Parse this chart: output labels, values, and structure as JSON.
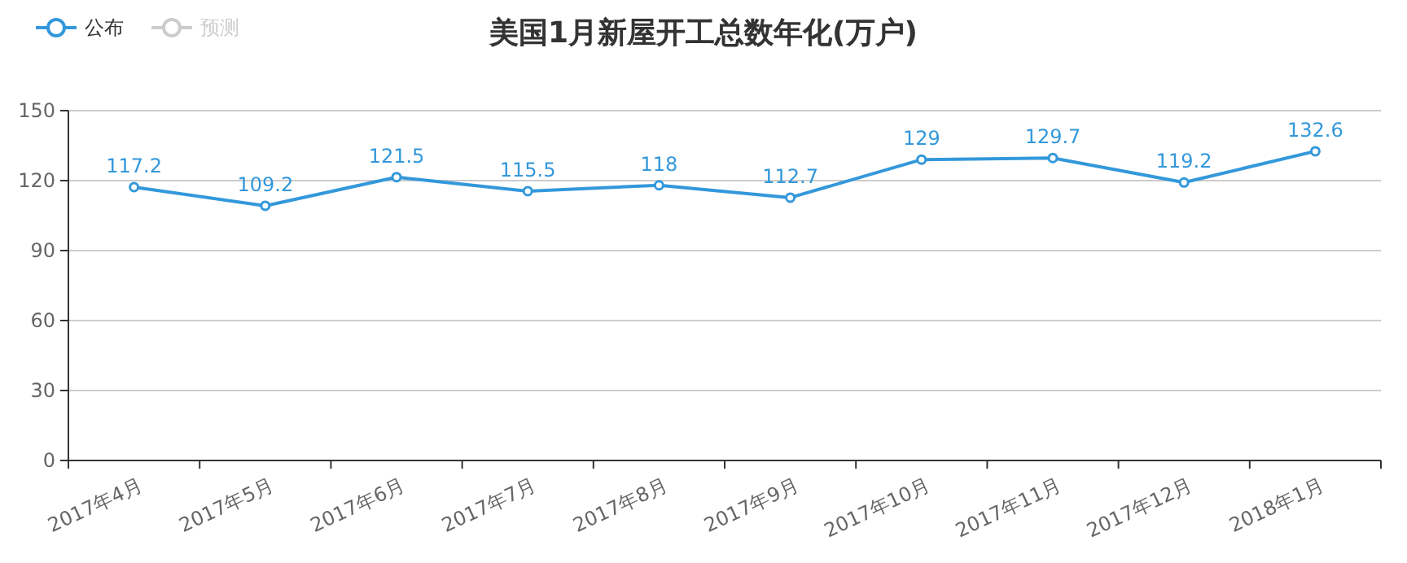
{
  "chart_data": {
    "type": "line",
    "title": "美国1月新屋开工总数年化(万户)",
    "categories": [
      "2017年4月",
      "2017年5月",
      "2017年6月",
      "2017年7月",
      "2017年8月",
      "2017年9月",
      "2017年10月",
      "2017年11月",
      "2017年12月",
      "2018年1月"
    ],
    "series": [
      {
        "name": "公布",
        "color": "#3398db",
        "values": [
          117.2,
          109.2,
          121.5,
          115.5,
          118,
          112.7,
          129,
          129.7,
          119.2,
          132.6
        ]
      },
      {
        "name": "预测",
        "color": "#cccccc",
        "values": [
          null,
          null,
          null,
          null,
          null,
          null,
          null,
          null,
          null,
          null
        ]
      }
    ],
    "ylim": [
      0,
      150
    ],
    "yticks": [
      0,
      30,
      60,
      90,
      120,
      150
    ],
    "grid": "y",
    "data_labels": true,
    "marker": "circle",
    "line_style": "solid",
    "legend": "top left"
  }
}
